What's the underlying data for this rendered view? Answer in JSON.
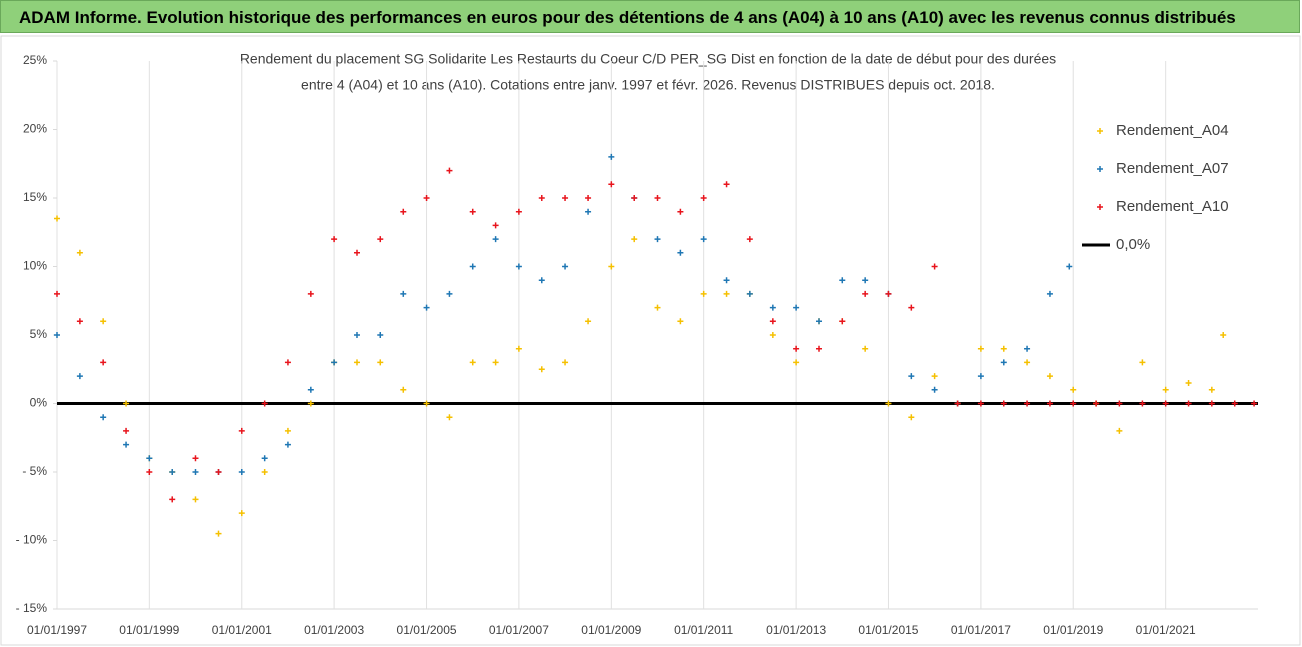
{
  "header": {
    "title": "ADAM Informe. Evolution historique des performances en euros pour des détentions de 4 ans (A04) à 10 ans (A10) avec les revenus connus distribués"
  },
  "chart_data": {
    "type": "scatter",
    "title": [
      "Rendement du placement SG Solidarite Les Restaurts du Coeur C/D PER_SG Dist en fonction de la date de début pour des durées",
      "entre 4 (A04) et 10 ans (A10). Cotations entre janv. 1997 et févr. 2026. Revenus DISTRIBUES depuis oct. 2018."
    ],
    "xlim": [
      "1997-01-01",
      "2023-01-01"
    ],
    "xticks": [
      {
        "value": "1997-01-01",
        "label": "01/01/1997"
      },
      {
        "value": "1999-01-01",
        "label": "01/01/1999"
      },
      {
        "value": "2001-01-01",
        "label": "01/01/2001"
      },
      {
        "value": "2003-01-01",
        "label": "01/01/2003"
      },
      {
        "value": "2005-01-01",
        "label": "01/01/2005"
      },
      {
        "value": "2007-01-01",
        "label": "01/01/2007"
      },
      {
        "value": "2009-01-01",
        "label": "01/01/2009"
      },
      {
        "value": "2011-01-01",
        "label": "01/01/2011"
      },
      {
        "value": "2013-01-01",
        "label": "01/01/2013"
      },
      {
        "value": "2015-01-01",
        "label": "01/01/2015"
      },
      {
        "value": "2017-01-01",
        "label": "01/01/2017"
      },
      {
        "value": "2019-01-01",
        "label": "01/01/2019"
      },
      {
        "value": "2021-01-01",
        "label": "01/01/2021"
      }
    ],
    "ylim": [
      -15,
      25
    ],
    "yticks": [
      {
        "value": -15,
        "label": "- 15%"
      },
      {
        "value": -10,
        "label": "- 10%"
      },
      {
        "value": -5,
        "label": "- 5%"
      },
      {
        "value": 0,
        "label": "0%"
      },
      {
        "value": 5,
        "label": "5%"
      },
      {
        "value": 10,
        "label": "10%"
      },
      {
        "value": 15,
        "label": "15%"
      },
      {
        "value": 20,
        "label": "20%"
      },
      {
        "value": 25,
        "label": "25%"
      }
    ],
    "grid": "x",
    "series": [
      {
        "name": "Rendement_A04",
        "color": "#f5c000",
        "x": [
          "1997-01-01",
          "1997-07-01",
          "1998-01-01",
          "1998-07-01",
          "1999-01-01",
          "1999-07-01",
          "2000-01-01",
          "2000-07-01",
          "2001-01-01",
          "2001-07-01",
          "2002-01-01",
          "2002-07-01",
          "2003-01-01",
          "2003-07-01",
          "2004-01-01",
          "2004-07-01",
          "2005-01-01",
          "2005-07-01",
          "2006-01-01",
          "2006-07-01",
          "2007-01-01",
          "2007-07-01",
          "2008-01-01",
          "2008-07-01",
          "2009-01-01",
          "2009-07-01",
          "2010-01-01",
          "2010-07-01",
          "2011-01-01",
          "2011-07-01",
          "2012-01-01",
          "2012-07-01",
          "2013-01-01",
          "2013-07-01",
          "2014-01-01",
          "2014-07-01",
          "2015-01-01",
          "2015-07-01",
          "2016-01-01",
          "2016-07-01",
          "2017-01-01",
          "2017-07-01",
          "2018-01-01",
          "2018-07-01",
          "2019-01-01",
          "2019-07-01",
          "2020-01-01",
          "2020-07-01",
          "2021-01-01",
          "2021-07-01",
          "2022-01-01",
          "2022-04-01"
        ],
        "values": [
          13.5,
          11,
          6,
          0,
          -4,
          -5,
          -7,
          -9.5,
          -8,
          -5,
          -2,
          0,
          3,
          3,
          3,
          1,
          0,
          -1,
          3,
          3,
          4,
          2.5,
          3,
          6,
          10,
          12,
          7,
          6,
          8,
          8,
          8,
          5,
          3,
          6,
          6,
          4,
          0,
          -1,
          2,
          0,
          4,
          4,
          3,
          2,
          1,
          0,
          -2,
          3,
          1,
          1.5,
          1,
          5
        ]
      },
      {
        "name": "Rendement_A07",
        "color": "#1f77b4",
        "x": [
          "1997-01-01",
          "1997-07-01",
          "1998-01-01",
          "1998-07-01",
          "1999-01-01",
          "1999-07-01",
          "2000-01-01",
          "2000-07-01",
          "2001-01-01",
          "2001-07-01",
          "2002-01-01",
          "2002-07-01",
          "2003-01-01",
          "2003-07-01",
          "2004-01-01",
          "2004-07-01",
          "2005-01-01",
          "2005-07-01",
          "2006-01-01",
          "2006-07-01",
          "2007-01-01",
          "2007-07-01",
          "2008-01-01",
          "2008-07-01",
          "2009-01-01",
          "2009-07-01",
          "2010-01-01",
          "2010-07-01",
          "2011-01-01",
          "2011-07-01",
          "2012-01-01",
          "2012-07-01",
          "2013-01-01",
          "2013-07-01",
          "2014-01-01",
          "2014-07-01",
          "2015-01-01",
          "2015-07-01",
          "2016-01-01",
          "2016-07-01",
          "2017-01-01",
          "2017-07-01",
          "2018-01-01",
          "2018-07-01",
          "2018-12-01"
        ],
        "values": [
          5,
          2,
          -1,
          -3,
          -4,
          -5,
          -5,
          -5,
          -5,
          -4,
          -3,
          1,
          3,
          5,
          5,
          8,
          7,
          8,
          10,
          12,
          10,
          9,
          10,
          14,
          18,
          15,
          12,
          11,
          12,
          9,
          8,
          7,
          7,
          6,
          9,
          9,
          8,
          2,
          1,
          0,
          2,
          3,
          4,
          8,
          10
        ]
      },
      {
        "name": "Rendement_A10",
        "color": "#e8141c",
        "x": [
          "1997-01-01",
          "1997-07-01",
          "1998-01-01",
          "1998-07-01",
          "1999-01-01",
          "1999-07-01",
          "2000-01-01",
          "2000-07-01",
          "2001-01-01",
          "2001-07-01",
          "2002-01-01",
          "2002-07-01",
          "2003-01-01",
          "2003-07-01",
          "2004-01-01",
          "2004-07-01",
          "2005-01-01",
          "2005-07-01",
          "2006-01-01",
          "2006-07-01",
          "2007-01-01",
          "2007-07-01",
          "2008-01-01",
          "2008-07-01",
          "2009-01-01",
          "2009-07-01",
          "2010-01-01",
          "2010-07-01",
          "2011-01-01",
          "2011-07-01",
          "2012-01-01",
          "2012-07-01",
          "2013-01-01",
          "2013-07-01",
          "2014-01-01",
          "2014-07-01",
          "2015-01-01",
          "2015-07-01",
          "2016-01-01",
          "2016-07-01",
          "2017-01-01",
          "2017-07-01",
          "2018-01-01",
          "2018-07-01",
          "2019-01-01",
          "2019-07-01",
          "2020-01-01",
          "2020-07-01",
          "2021-01-01",
          "2021-07-01",
          "2022-01-01",
          "2022-07-01",
          "2022-12-01"
        ],
        "values": [
          8,
          6,
          3,
          -2,
          -5,
          -7,
          -4,
          -5,
          -2,
          0,
          3,
          8,
          12,
          11,
          12,
          14,
          15,
          17,
          14,
          13,
          14,
          15,
          15,
          15,
          16,
          15,
          15,
          14,
          15,
          16,
          12,
          6,
          4,
          4,
          6,
          8,
          8,
          7,
          10,
          0,
          0,
          0,
          0,
          0,
          0,
          0,
          0,
          0,
          0,
          0,
          0,
          0,
          0
        ]
      }
    ],
    "reference_lines": [
      {
        "name": "0,0%",
        "value": 0,
        "color": "#000000"
      }
    ]
  }
}
